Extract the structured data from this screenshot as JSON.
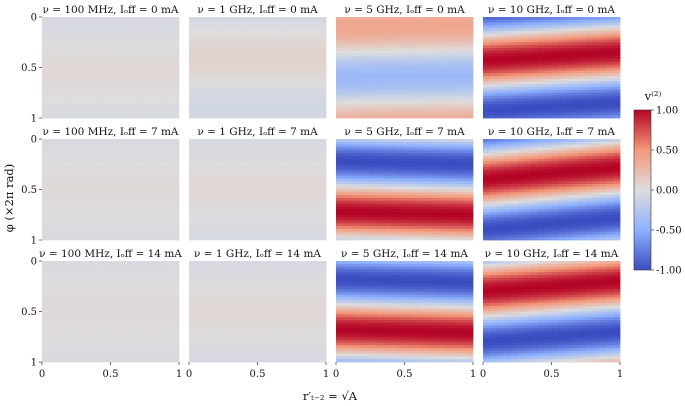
{
  "figure": {
    "ylabel": "φ (×2π rad)",
    "xlabel": "r′ₜ₋₂ = √A",
    "colorbar": {
      "label": "v⁽²⁾",
      "ticks": [
        "1.00",
        "0.50",
        "0.00",
        "-0.50",
        "-1.00"
      ],
      "range": [
        -1,
        1
      ],
      "colormap": "coolwarm",
      "color_low": "#3b4cc0",
      "color_mid": "#dddddd",
      "color_high": "#b40426"
    }
  },
  "chart_data": [
    {
      "type": "heatmap",
      "title": "ν = 100 MHz, Iₒff = 0 mA",
      "freq_ghz": 0.1,
      "ioff_ma": 0,
      "amplitude": 0.04,
      "phase_offset": 0.55,
      "slope": 0.0,
      "x_ticks": [],
      "y_ticks": [
        "0",
        "0.5",
        "1"
      ]
    },
    {
      "type": "heatmap",
      "title": "ν = 1 GHz, Iₒff = 0 mA",
      "freq_ghz": 1,
      "ioff_ma": 0,
      "amplitude": 0.08,
      "phase_offset": 0.4,
      "slope": 0.0,
      "x_ticks": [],
      "y_ticks": []
    },
    {
      "type": "heatmap",
      "title": "ν = 5 GHz, Iₒff = 0 mA",
      "freq_ghz": 5,
      "ioff_ma": 0,
      "amplitude": 0.4,
      "phase_offset": 0.1,
      "slope": 0.02,
      "x_ticks": [],
      "y_ticks": []
    },
    {
      "type": "heatmap",
      "title": "ν = 10 GHz, Iₒff = 0 mA",
      "freq_ghz": 10,
      "ioff_ma": 0,
      "amplitude": 1.0,
      "phase_offset": 0.43,
      "slope": 0.08,
      "x_ticks": [],
      "y_ticks": []
    },
    {
      "type": "heatmap",
      "title": "ν = 100 MHz, Iₒff = 7 mA",
      "freq_ghz": 0.1,
      "ioff_ma": 7,
      "amplitude": 0.03,
      "phase_offset": 0.5,
      "slope": 0.0,
      "x_ticks": [],
      "y_ticks": [
        "0",
        "0.5",
        "1"
      ]
    },
    {
      "type": "heatmap",
      "title": "ν = 1 GHz, Iₒff = 7 mA",
      "freq_ghz": 1,
      "ioff_ma": 7,
      "amplitude": 0.04,
      "phase_offset": 0.5,
      "slope": 0.0,
      "x_ticks": [],
      "y_ticks": []
    },
    {
      "type": "heatmap",
      "title": "ν = 5 GHz, Iₒff = 7 mA",
      "freq_ghz": 5,
      "ioff_ma": 7,
      "amplitude": 1.0,
      "phase_offset": 0.72,
      "slope": -0.03,
      "x_ticks": [],
      "y_ticks": []
    },
    {
      "type": "heatmap",
      "title": "ν = 10 GHz, Iₒff = 7 mA",
      "freq_ghz": 10,
      "ioff_ma": 7,
      "amplitude": 1.0,
      "phase_offset": 0.4,
      "slope": 0.12,
      "x_ticks": [],
      "y_ticks": []
    },
    {
      "type": "heatmap",
      "title": "ν = 100 MHz, Iₒff = 14 mA",
      "freq_ghz": 0.1,
      "ioff_ma": 14,
      "amplitude": 0.03,
      "phase_offset": 0.5,
      "slope": 0.0,
      "x_ticks": [
        "0",
        "0.5",
        "1"
      ],
      "y_ticks": [
        "0",
        "0.5",
        "1"
      ]
    },
    {
      "type": "heatmap",
      "title": "ν = 1 GHz, Iₒff = 14 mA",
      "freq_ghz": 1,
      "ioff_ma": 14,
      "amplitude": 0.04,
      "phase_offset": 0.5,
      "slope": 0.0,
      "x_ticks": [
        "0",
        "0.5",
        "1"
      ],
      "y_ticks": []
    },
    {
      "type": "heatmap",
      "title": "ν = 5 GHz, Iₒff = 14 mA",
      "freq_ghz": 5,
      "ioff_ma": 14,
      "amplitude": 1.0,
      "phase_offset": 0.68,
      "slope": -0.03,
      "x_ticks": [
        "0",
        "0.5",
        "1"
      ],
      "y_ticks": []
    },
    {
      "type": "heatmap",
      "title": "ν = 10 GHz, Iₒff = 14 mA",
      "freq_ghz": 10,
      "ioff_ma": 14,
      "amplitude": 1.0,
      "phase_offset": 0.3,
      "slope": 0.1,
      "x_ticks": [
        "0",
        "0.5",
        "1"
      ],
      "y_ticks": []
    }
  ]
}
